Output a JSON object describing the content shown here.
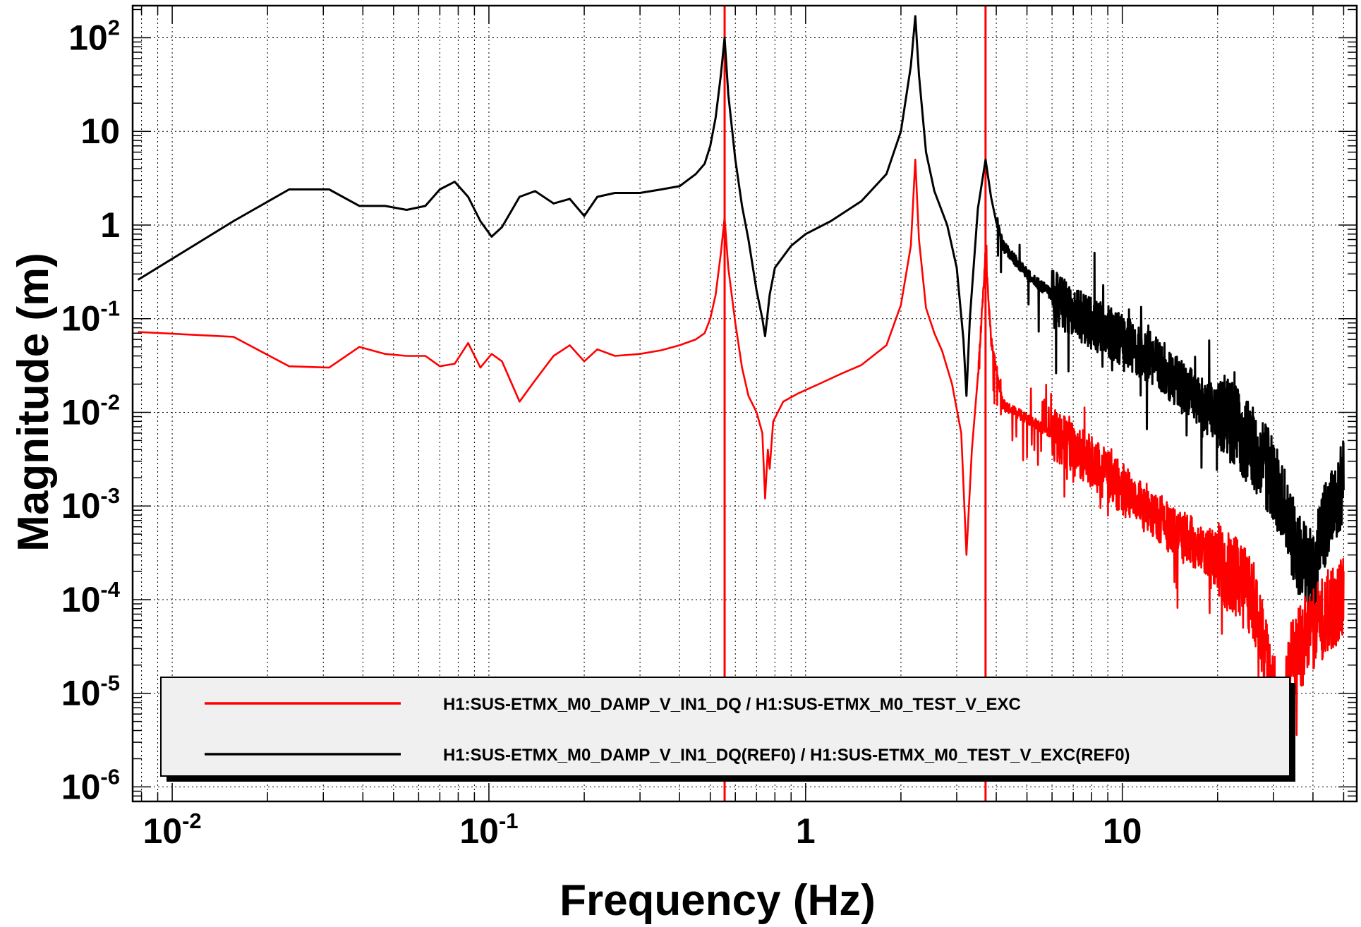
{
  "chart_data": {
    "type": "line",
    "xscale": "log",
    "yscale": "log",
    "xlim": [
      0.0075,
      55
    ],
    "ylim": [
      7e-07,
      220
    ],
    "grid": true,
    "xlabel": "Frequency (Hz)",
    "ylabel": "Magnitude (m)",
    "x_ticks": [
      {
        "value": 0.01,
        "base": "10",
        "exp": "-2"
      },
      {
        "value": 0.1,
        "base": "10",
        "exp": "-1"
      },
      {
        "value": 1,
        "base": "1",
        "exp": ""
      },
      {
        "value": 10,
        "base": "10",
        "exp": ""
      }
    ],
    "y_ticks": [
      {
        "value": 100,
        "base": "10",
        "exp": "2"
      },
      {
        "value": 10,
        "base": "10",
        "exp": ""
      },
      {
        "value": 1,
        "base": "1",
        "exp": ""
      },
      {
        "value": 0.1,
        "base": "10",
        "exp": "-1"
      },
      {
        "value": 0.01,
        "base": "10",
        "exp": "-2"
      },
      {
        "value": 0.001,
        "base": "10",
        "exp": "-3"
      },
      {
        "value": 0.0001,
        "base": "10",
        "exp": "-4"
      },
      {
        "value": 1e-05,
        "base": "10",
        "exp": "-5"
      },
      {
        "value": 1e-06,
        "base": "10",
        "exp": "-6"
      }
    ],
    "vertical_markers": [
      {
        "x": 0.555,
        "color": "#ff0000"
      },
      {
        "x": 3.7,
        "color": "#ff0000"
      }
    ],
    "legend_position": "bottom",
    "series": [
      {
        "name": "H1:SUS-ETMX_M0_DAMP_V_IN1_DQ / H1:SUS-ETMX_M0_TEST_V_EXC",
        "color": "#ff0000",
        "noise_above": 3.5,
        "points": [
          [
            0.0078,
            0.072
          ],
          [
            0.0156,
            0.064
          ],
          [
            0.0234,
            0.031
          ],
          [
            0.0313,
            0.03
          ],
          [
            0.039,
            0.05
          ],
          [
            0.047,
            0.042
          ],
          [
            0.055,
            0.04
          ],
          [
            0.063,
            0.04
          ],
          [
            0.07,
            0.031
          ],
          [
            0.078,
            0.033
          ],
          [
            0.086,
            0.055
          ],
          [
            0.094,
            0.03
          ],
          [
            0.102,
            0.042
          ],
          [
            0.11,
            0.035
          ],
          [
            0.125,
            0.013
          ],
          [
            0.14,
            0.022
          ],
          [
            0.16,
            0.04
          ],
          [
            0.18,
            0.052
          ],
          [
            0.2,
            0.035
          ],
          [
            0.22,
            0.047
          ],
          [
            0.25,
            0.04
          ],
          [
            0.3,
            0.042
          ],
          [
            0.35,
            0.046
          ],
          [
            0.4,
            0.052
          ],
          [
            0.45,
            0.06
          ],
          [
            0.48,
            0.07
          ],
          [
            0.5,
            0.1
          ],
          [
            0.52,
            0.18
          ],
          [
            0.54,
            0.5
          ],
          [
            0.555,
            1.2
          ],
          [
            0.57,
            0.35
          ],
          [
            0.6,
            0.09
          ],
          [
            0.63,
            0.03
          ],
          [
            0.66,
            0.015
          ],
          [
            0.7,
            0.01
          ],
          [
            0.73,
            0.006
          ],
          [
            0.745,
            0.0012
          ],
          [
            0.76,
            0.004
          ],
          [
            0.77,
            0.0025
          ],
          [
            0.79,
            0.008
          ],
          [
            0.85,
            0.013
          ],
          [
            0.95,
            0.016
          ],
          [
            1.1,
            0.02
          ],
          [
            1.3,
            0.026
          ],
          [
            1.5,
            0.032
          ],
          [
            1.8,
            0.052
          ],
          [
            2.0,
            0.14
          ],
          [
            2.15,
            0.6
          ],
          [
            2.22,
            5.0
          ],
          [
            2.28,
            0.7
          ],
          [
            2.4,
            0.13
          ],
          [
            2.55,
            0.07
          ],
          [
            2.7,
            0.045
          ],
          [
            2.9,
            0.02
          ],
          [
            3.1,
            0.006
          ],
          [
            3.22,
            0.0003
          ],
          [
            3.35,
            0.004
          ],
          [
            3.55,
            0.05
          ],
          [
            3.7,
            0.5
          ],
          [
            3.85,
            0.06
          ],
          [
            4.2,
            0.012
          ],
          [
            5.0,
            0.0085
          ],
          [
            6.0,
            0.006
          ],
          [
            7.0,
            0.004
          ],
          [
            8.0,
            0.003
          ],
          [
            10.0,
            0.0015
          ],
          [
            12.0,
            0.0009
          ],
          [
            15.0,
            0.0005
          ],
          [
            18.0,
            0.00035
          ],
          [
            22.0,
            0.0002
          ],
          [
            26.0,
            0.0001
          ],
          [
            28.0,
            3e-05
          ],
          [
            30.0,
            1.2e-05
          ],
          [
            32.0,
            4e-06
          ],
          [
            34.0,
            2e-05
          ],
          [
            38.0,
            4e-05
          ],
          [
            44.0,
            7e-05
          ],
          [
            50.0,
            0.00011
          ]
        ]
      },
      {
        "name": "H1:SUS-ETMX_M0_DAMP_V_IN1_DQ(REF0) / H1:SUS-ETMX_M0_TEST_V_EXC(REF0)",
        "color": "#000000",
        "noise_above": 4.0,
        "points": [
          [
            0.0078,
            0.26
          ],
          [
            0.0156,
            1.1
          ],
          [
            0.0234,
            2.4
          ],
          [
            0.0313,
            2.4
          ],
          [
            0.039,
            1.6
          ],
          [
            0.047,
            1.6
          ],
          [
            0.055,
            1.45
          ],
          [
            0.063,
            1.6
          ],
          [
            0.07,
            2.4
          ],
          [
            0.078,
            2.9
          ],
          [
            0.086,
            2.0
          ],
          [
            0.094,
            1.1
          ],
          [
            0.102,
            0.75
          ],
          [
            0.11,
            0.95
          ],
          [
            0.125,
            2.0
          ],
          [
            0.14,
            2.3
          ],
          [
            0.16,
            1.7
          ],
          [
            0.18,
            1.9
          ],
          [
            0.2,
            1.25
          ],
          [
            0.22,
            2.0
          ],
          [
            0.25,
            2.2
          ],
          [
            0.3,
            2.2
          ],
          [
            0.35,
            2.4
          ],
          [
            0.4,
            2.6
          ],
          [
            0.45,
            3.5
          ],
          [
            0.48,
            4.5
          ],
          [
            0.5,
            7.0
          ],
          [
            0.52,
            14.0
          ],
          [
            0.54,
            40.0
          ],
          [
            0.555,
            100.0
          ],
          [
            0.57,
            25.0
          ],
          [
            0.6,
            5.0
          ],
          [
            0.63,
            1.6
          ],
          [
            0.66,
            0.7
          ],
          [
            0.7,
            0.2
          ],
          [
            0.73,
            0.1
          ],
          [
            0.745,
            0.065
          ],
          [
            0.77,
            0.18
          ],
          [
            0.8,
            0.35
          ],
          [
            0.9,
            0.6
          ],
          [
            1.0,
            0.8
          ],
          [
            1.2,
            1.1
          ],
          [
            1.5,
            1.8
          ],
          [
            1.8,
            3.5
          ],
          [
            2.0,
            10.0
          ],
          [
            2.15,
            50.0
          ],
          [
            2.22,
            170.0
          ],
          [
            2.28,
            40.0
          ],
          [
            2.4,
            6.0
          ],
          [
            2.55,
            2.3
          ],
          [
            2.8,
            1.0
          ],
          [
            3.0,
            0.35
          ],
          [
            3.15,
            0.06
          ],
          [
            3.22,
            0.015
          ],
          [
            3.3,
            0.1
          ],
          [
            3.5,
            1.5
          ],
          [
            3.7,
            5.0
          ],
          [
            3.85,
            2.0
          ],
          [
            4.2,
            0.6
          ],
          [
            5.0,
            0.3
          ],
          [
            6.0,
            0.18
          ],
          [
            7.0,
            0.12
          ],
          [
            8.0,
            0.09
          ],
          [
            10.0,
            0.06
          ],
          [
            12.0,
            0.04
          ],
          [
            13.5,
            0.03
          ],
          [
            15.0,
            0.02
          ],
          [
            18.0,
            0.012
          ],
          [
            22.0,
            0.008
          ],
          [
            26.0,
            0.004
          ],
          [
            30.0,
            0.002
          ],
          [
            33.0,
            0.0008
          ],
          [
            36.0,
            0.0003
          ],
          [
            40.0,
            0.0002
          ],
          [
            44.0,
            0.0007
          ],
          [
            48.0,
            0.0012
          ],
          [
            50.0,
            0.002
          ]
        ]
      }
    ]
  }
}
